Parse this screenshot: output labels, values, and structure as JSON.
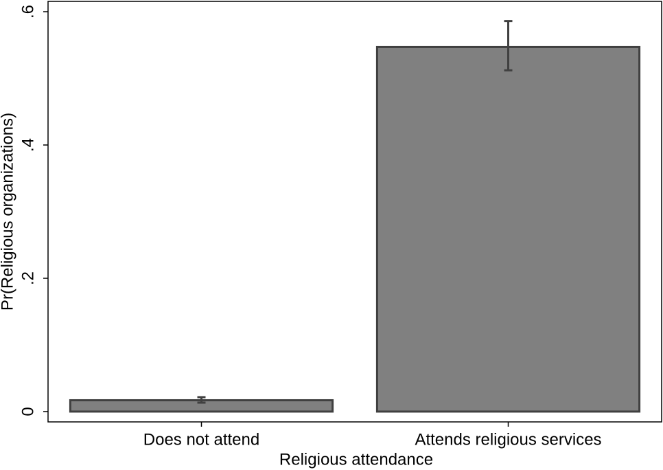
{
  "chart_data": {
    "type": "bar",
    "categories": [
      "Does not attend",
      "Attends religious services"
    ],
    "series": [
      {
        "values": [
          0.017,
          0.547
        ],
        "lower": [
          0.0134,
          0.512
        ],
        "upper": [
          0.0216,
          0.586
        ],
        "color": "#808080"
      }
    ],
    "xlabel": "Religious attendance",
    "ylabel": "Pr(Religious organizations)",
    "ylim": [
      -0.0155,
      0.6155
    ],
    "yticks": [
      0,
      {
        "value": 0.2,
        "label": ".2"
      },
      {
        "value": 0.4,
        "label": ".4"
      },
      {
        "value": 0.6,
        "label": ".6"
      }
    ]
  }
}
